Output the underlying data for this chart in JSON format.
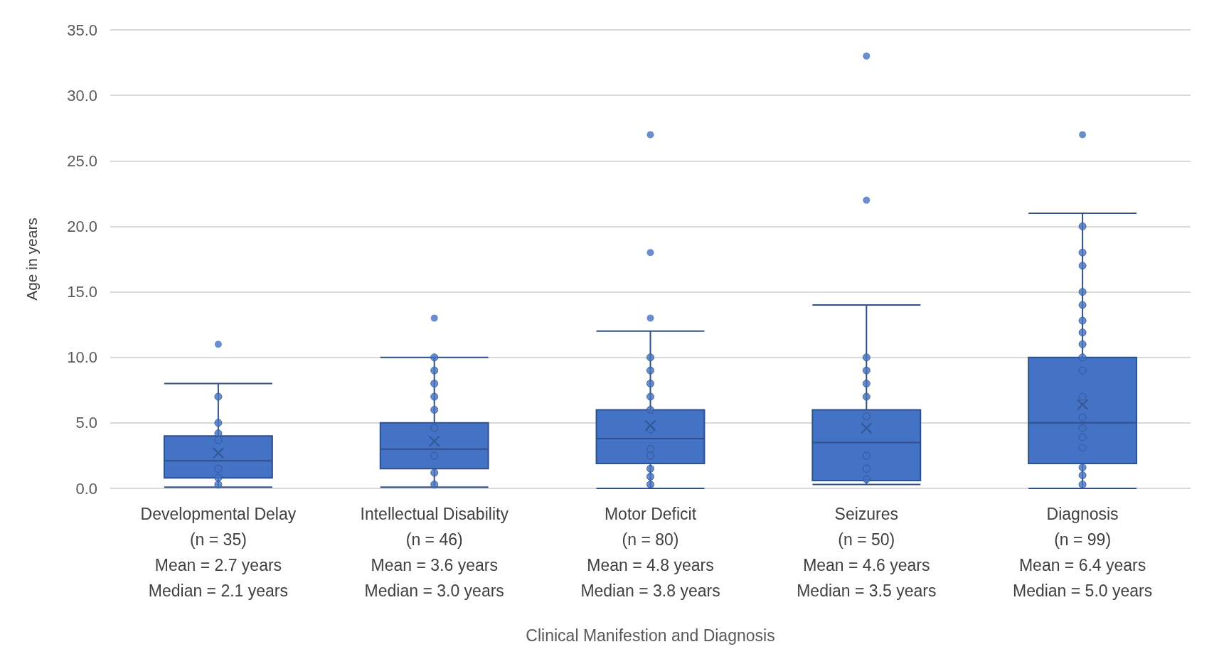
{
  "chart_data": {
    "type": "box",
    "xlabel": "Clinical Manifestion and Diagnosis",
    "ylabel": "Age in years",
    "categories": [
      "Developmental Delay\n(n = 35)\nMean = 2.7 years\nMedian = 2.1 years",
      "Intellectual Disability\n(n = 46)\nMean = 3.6 years\nMedian = 3.0 years",
      "Motor Deficit\n(n = 80)\nMean = 4.8 years\nMedian = 3.8 years",
      "Seizures\n(n = 50)\nMean = 4.6 years\nMedian = 3.5 years",
      "Diagnosis\n(n = 99)\nMean = 6.4 years\nMedian = 5.0 years"
    ],
    "ylim": [
      0,
      35
    ],
    "yticks": [
      {
        "value": 0,
        "label": "0.0"
      },
      {
        "value": 5,
        "label": "5.0"
      },
      {
        "value": 10,
        "label": "10.0"
      },
      {
        "value": 15,
        "label": "15.0"
      },
      {
        "value": 20,
        "label": "20.0"
      },
      {
        "value": 25,
        "label": "25.0"
      },
      {
        "value": 30,
        "label": "30.0"
      },
      {
        "value": 35,
        "label": "35.0"
      }
    ],
    "grid": "y",
    "series": [
      {
        "type": "box",
        "color": "#4472c4",
        "boxes": [
          {
            "low": 0.1,
            "q1": 0.8,
            "median": 2.1,
            "q3": 4.0,
            "high": 8.0,
            "mean": 2.7,
            "outliers": [
              11
            ]
          },
          {
            "low": 0.1,
            "q1": 1.5,
            "median": 3.0,
            "q3": 5.0,
            "high": 10.0,
            "mean": 3.6,
            "outliers": [
              13
            ]
          },
          {
            "low": 0,
            "q1": 1.9,
            "median": 3.8,
            "q3": 6.0,
            "high": 12.0,
            "mean": 4.8,
            "outliers": [
              13,
              18,
              27
            ]
          },
          {
            "low": 0.3,
            "q1": 0.6,
            "median": 3.5,
            "q3": 6.0,
            "high": 14.0,
            "mean": 4.6,
            "outliers": [
              22,
              33
            ]
          },
          {
            "low": 0,
            "q1": 1.9,
            "median": 5.0,
            "q3": 10.0,
            "high": 21.0,
            "mean": 6.4,
            "outliers": [
              27
            ]
          }
        ]
      },
      {
        "type": "scatter",
        "color": "#4472c4",
        "marker": "circle",
        "x": [
          "Developmental Delay\n(n = 35)\nMean = 2.7 years\nMedian = 2.1 years",
          "Developmental Delay\n(n = 35)\nMean = 2.7 years\nMedian = 2.1 years",
          "Developmental Delay\n(n = 35)\nMean = 2.7 years\nMedian = 2.1 years",
          "Developmental Delay\n(n = 35)\nMean = 2.7 years\nMedian = 2.1 years",
          "Developmental Delay\n(n = 35)\nMean = 2.7 years\nMedian = 2.1 years",
          "Developmental Delay\n(n = 35)\nMean = 2.7 years\nMedian = 2.1 years",
          "Developmental Delay\n(n = 35)\nMean = 2.7 years\nMedian = 2.1 years",
          "Intellectual Disability\n(n = 46)\nMean = 3.6 years\nMedian = 3.0 years",
          "Intellectual Disability\n(n = 46)\nMean = 3.6 years\nMedian = 3.0 years",
          "Intellectual Disability\n(n = 46)\nMean = 3.6 years\nMedian = 3.0 years",
          "Intellectual Disability\n(n = 46)\nMean = 3.6 years\nMedian = 3.0 years",
          "Intellectual Disability\n(n = 46)\nMean = 3.6 years\nMedian = 3.0 years",
          "Intellectual Disability\n(n = 46)\nMean = 3.6 years\nMedian = 3.0 years",
          "Intellectual Disability\n(n = 46)\nMean = 3.6 years\nMedian = 3.0 years",
          "Intellectual Disability\n(n = 46)\nMean = 3.6 years\nMedian = 3.0 years",
          "Intellectual Disability\n(n = 46)\nMean = 3.6 years\nMedian = 3.0 years",
          "Motor Deficit\n(n = 80)\nMean = 4.8 years\nMedian = 3.8 years",
          "Motor Deficit\n(n = 80)\nMean = 4.8 years\nMedian = 3.8 years",
          "Motor Deficit\n(n = 80)\nMean = 4.8 years\nMedian = 3.8 years",
          "Motor Deficit\n(n = 80)\nMean = 4.8 years\nMedian = 3.8 years",
          "Motor Deficit\n(n = 80)\nMean = 4.8 years\nMedian = 3.8 years",
          "Motor Deficit\n(n = 80)\nMean = 4.8 years\nMedian = 3.8 years",
          "Motor Deficit\n(n = 80)\nMean = 4.8 years\nMedian = 3.8 years",
          "Motor Deficit\n(n = 80)\nMean = 4.8 years\nMedian = 3.8 years",
          "Motor Deficit\n(n = 80)\nMean = 4.8 years\nMedian = 3.8 years",
          "Motor Deficit\n(n = 80)\nMean = 4.8 years\nMedian = 3.8 years",
          "Motor Deficit\n(n = 80)\nMean = 4.8 years\nMedian = 3.8 years",
          "Seizures\n(n = 50)\nMean = 4.6 years\nMedian = 3.5 years",
          "Seizures\n(n = 50)\nMean = 4.6 years\nMedian = 3.5 years",
          "Seizures\n(n = 50)\nMean = 4.6 years\nMedian = 3.5 years",
          "Seizures\n(n = 50)\nMean = 4.6 years\nMedian = 3.5 years",
          "Seizures\n(n = 50)\nMean = 4.6 years\nMedian = 3.5 years",
          "Seizures\n(n = 50)\nMean = 4.6 years\nMedian = 3.5 years",
          "Seizures\n(n = 50)\nMean = 4.6 years\nMedian = 3.5 years",
          "Seizures\n(n = 50)\nMean = 4.6 years\nMedian = 3.5 years",
          "Diagnosis\n(n = 99)\nMean = 6.4 years\nMedian = 5.0 years",
          "Diagnosis\n(n = 99)\nMean = 6.4 years\nMedian = 5.0 years",
          "Diagnosis\n(n = 99)\nMean = 6.4 years\nMedian = 5.0 years",
          "Diagnosis\n(n = 99)\nMean = 6.4 years\nMedian = 5.0 years",
          "Diagnosis\n(n = 99)\nMean = 6.4 years\nMedian = 5.0 years",
          "Diagnosis\n(n = 99)\nMean = 6.4 years\nMedian = 5.0 years",
          "Diagnosis\n(n = 99)\nMean = 6.4 years\nMedian = 5.0 years",
          "Diagnosis\n(n = 99)\nMean = 6.4 years\nMedian = 5.0 years",
          "Diagnosis\n(n = 99)\nMean = 6.4 years\nMedian = 5.0 years",
          "Diagnosis\n(n = 99)\nMean = 6.4 years\nMedian = 5.0 years",
          "Diagnosis\n(n = 99)\nMean = 6.4 years\nMedian = 5.0 years",
          "Diagnosis\n(n = 99)\nMean = 6.4 years\nMedian = 5.0 years",
          "Diagnosis\n(n = 99)\nMean = 6.4 years\nMedian = 5.0 years",
          "Diagnosis\n(n = 99)\nMean = 6.4 years\nMedian = 5.0 years",
          "Diagnosis\n(n = 99)\nMean = 6.4 years\nMedian = 5.0 years",
          "Diagnosis\n(n = 99)\nMean = 6.4 years\nMedian = 5.0 years",
          "Diagnosis\n(n = 99)\nMean = 6.4 years\nMedian = 5.0 years",
          "Diagnosis\n(n = 99)\nMean = 6.4 years\nMedian = 5.0 years"
        ],
        "values": [
          7,
          5,
          4.2,
          3.7,
          1.5,
          0.8,
          0.3,
          10,
          9,
          8,
          7,
          6,
          4.6,
          2.5,
          1.2,
          0.3,
          10,
          9,
          8,
          7,
          6,
          4.5,
          3,
          2.5,
          1.5,
          0.9,
          0.3,
          10,
          9,
          8,
          7,
          5.5,
          2.5,
          1.5,
          0.7,
          20,
          18,
          17,
          15,
          14,
          12.8,
          11.9,
          11,
          10,
          9,
          7,
          5.4,
          4.6,
          3.9,
          3.1,
          1.6,
          1,
          0.3
        ]
      }
    ]
  }
}
